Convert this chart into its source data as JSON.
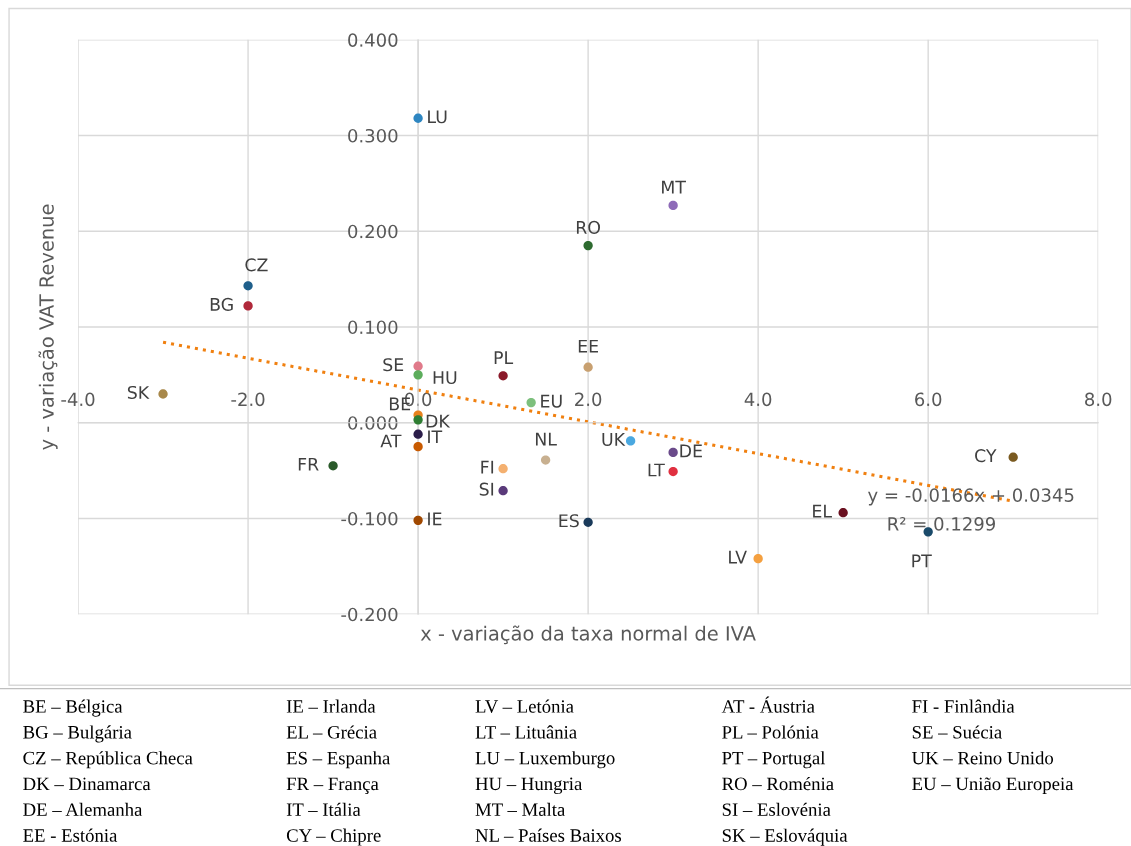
{
  "chart_data": {
    "type": "scatter",
    "xlabel": "x - variação da taxa normal de IVA",
    "ylabel": "y - variação VAT Revenue",
    "xlim": [
      -4,
      8
    ],
    "ylim": [
      -0.2,
      0.4
    ],
    "xticks": [
      {
        "value": -4,
        "label": "-4.0"
      },
      {
        "value": -2,
        "label": "-2.0"
      },
      {
        "value": 0,
        "label": "0.0"
      },
      {
        "value": 2,
        "label": "2.0"
      },
      {
        "value": 4,
        "label": "4.0"
      },
      {
        "value": 6,
        "label": "6.0"
      },
      {
        "value": 8,
        "label": "8.0"
      }
    ],
    "yticks": [
      {
        "value": -0.2,
        "label": "-0.200"
      },
      {
        "value": -0.1,
        "label": "-0.100"
      },
      {
        "value": 0,
        "label": "0.000"
      },
      {
        "value": 0.1,
        "label": "0.100"
      },
      {
        "value": 0.2,
        "label": "0.200"
      },
      {
        "value": 0.3,
        "label": "0.300"
      },
      {
        "value": 0.4,
        "label": "0.400"
      }
    ],
    "grid": true,
    "series": [
      {
        "marker": "circle",
        "x": [
          0,
          3,
          2,
          -2,
          -2,
          -3,
          0,
          0,
          1,
          2,
          1.33,
          0,
          0,
          0,
          0,
          1.5,
          2.5,
          3,
          3,
          -1,
          1,
          1,
          0,
          2,
          4,
          5,
          6,
          7
        ],
        "values": [
          0.318,
          0.227,
          0.185,
          0.143,
          0.122,
          0.03,
          0.059,
          0.05,
          0.049,
          0.058,
          0.021,
          0.008,
          0.003,
          -0.012,
          -0.025,
          -0.039,
          -0.019,
          -0.031,
          -0.051,
          -0.045,
          -0.048,
          -0.071,
          -0.102,
          -0.104,
          -0.142,
          -0.094,
          -0.114,
          -0.036
        ],
        "colors": [
          "#2e86c1",
          "#8e6bb8",
          "#2e6b30",
          "#1f5f8b",
          "#b0283a",
          "#a8884a",
          "#e07a8a",
          "#5cad5c",
          "#8b1a2a",
          "#c8a070",
          "#7dc07d",
          "#e8821e",
          "#2e7d32",
          "#2b1d4a",
          "#c85a00",
          "#c8b090",
          "#4aa8e0",
          "#6a4a8a",
          "#e03040",
          "#2a5a2a",
          "#f4b070",
          "#5a3a7a",
          "#a04800",
          "#1a3a5a",
          "#f4a040",
          "#6a1020",
          "#1a4a6a",
          "#7a5a20"
        ]
      },
      {
        "type": "line",
        "x": [
          -3,
          7
        ],
        "values": [
          0.084,
          -0.082
        ],
        "color": "#f08010",
        "line_style": "dotted"
      }
    ],
    "annotations": [
      {
        "text": "LU",
        "x": 0,
        "y": 0.318
      },
      {
        "text": "MT",
        "x": 3,
        "y": 0.227
      },
      {
        "text": "RO",
        "x": 2,
        "y": 0.185
      },
      {
        "text": "CZ",
        "x": -2,
        "y": 0.143
      },
      {
        "text": "BG",
        "x": -2,
        "y": 0.122
      },
      {
        "text": "SK",
        "x": -3,
        "y": 0.03
      },
      {
        "text": "SE",
        "x": 0,
        "y": 0.059
      },
      {
        "text": "HU",
        "x": 0,
        "y": 0.05
      },
      {
        "text": "PL",
        "x": 1,
        "y": 0.049
      },
      {
        "text": "EE",
        "x": 2,
        "y": 0.058
      },
      {
        "text": "EU",
        "x": 1.33,
        "y": 0.021
      },
      {
        "text": "BE",
        "x": 0,
        "y": 0.008
      },
      {
        "text": "DK",
        "x": 0,
        "y": 0.003
      },
      {
        "text": "AT",
        "x": 0,
        "y": -0.012
      },
      {
        "text": "IT",
        "x": 0,
        "y": -0.025
      },
      {
        "text": "NL",
        "x": 1.5,
        "y": -0.039
      },
      {
        "text": "UK",
        "x": 2.5,
        "y": -0.019
      },
      {
        "text": "DE",
        "x": 3,
        "y": -0.031
      },
      {
        "text": "LT",
        "x": 3,
        "y": -0.051
      },
      {
        "text": "FR",
        "x": -1,
        "y": -0.045
      },
      {
        "text": "FI",
        "x": 1,
        "y": -0.048
      },
      {
        "text": "SI",
        "x": 1,
        "y": -0.071
      },
      {
        "text": "IE",
        "x": 0,
        "y": -0.102
      },
      {
        "text": "ES",
        "x": 2,
        "y": -0.104
      },
      {
        "text": "LV",
        "x": 4,
        "y": -0.142
      },
      {
        "text": "EL",
        "x": 5,
        "y": -0.094
      },
      {
        "text": "PT",
        "x": 6,
        "y": -0.114
      },
      {
        "text": "CY",
        "x": 7,
        "y": -0.036
      },
      "y = -0.0166x + 0.0345",
      "R² = 0.1299",
      "BE – Bélgica",
      "BG – Bulgária",
      "CZ – República Checa",
      "DK – Dinamarca",
      "DE – Alemanha",
      "EE - Estónia",
      "IE – Irlanda",
      "EL – Grécia",
      "ES – Espanha",
      "FR – França",
      "IT – Itália",
      "CY – Chipre",
      "LV – Letónia",
      "LT – Lituânia",
      "LU – Luxemburgo",
      "HU – Hungria",
      "MT – Malta",
      "NL – Países Baixos",
      "AT - Áustria",
      "PL – Polónia",
      "PT – Portugal",
      "RO – Roménia",
      "SI – Eslovénia",
      "SK – Eslováquia",
      "FI - Finlândia",
      "SE – Suécia",
      "UK – Reino Unido",
      "EU – União Europeia"
    ]
  }
}
